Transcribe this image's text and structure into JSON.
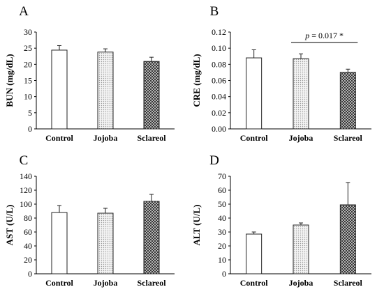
{
  "chart_data": [
    {
      "panel": "A",
      "type": "bar",
      "categories": [
        "Control",
        "Jojoba",
        "Sclareol"
      ],
      "values": [
        24.4,
        23.8,
        20.9
      ],
      "errors": [
        1.4,
        1.0,
        1.3
      ],
      "ylabel": "BUN (mg/dL)",
      "ylim": [
        0,
        30
      ],
      "yticks": [
        "0",
        "5",
        "10",
        "15",
        "20",
        "25",
        "30"
      ],
      "fills": [
        "white",
        "dots",
        "crosshatch"
      ]
    },
    {
      "panel": "B",
      "type": "bar",
      "categories": [
        "Control",
        "Jojoba",
        "Sclareol"
      ],
      "values": [
        0.088,
        0.087,
        0.07
      ],
      "errors": [
        0.01,
        0.006,
        0.004
      ],
      "ylabel": "CRE (mg/dL)",
      "ylim": [
        0,
        0.12
      ],
      "yticks": [
        "0.00",
        "0.02",
        "0.04",
        "0.06",
        "0.08",
        "0.10",
        "0.12"
      ],
      "fills": [
        "white",
        "dots",
        "crosshatch"
      ],
      "annotation": {
        "p_label": "p",
        "text": " = 0.017 *",
        "from": 1,
        "to": 2
      }
    },
    {
      "panel": "C",
      "type": "bar",
      "categories": [
        "Control",
        "Jojoba",
        "Sclareol"
      ],
      "values": [
        88,
        87,
        104
      ],
      "errors": [
        10,
        7,
        10
      ],
      "ylabel": "AST (U/L)",
      "ylim": [
        0,
        140
      ],
      "yticks": [
        "0",
        "20",
        "40",
        "60",
        "80",
        "100",
        "120",
        "140"
      ],
      "fills": [
        "white",
        "dots",
        "crosshatch"
      ]
    },
    {
      "panel": "D",
      "type": "bar",
      "categories": [
        "Control",
        "Jojoba",
        "Sclareol"
      ],
      "values": [
        28.5,
        35,
        49.5
      ],
      "errors": [
        1.5,
        1.5,
        16
      ],
      "ylabel": "ALT (U/L)",
      "ylim": [
        0,
        70
      ],
      "yticks": [
        "0",
        "10",
        "20",
        "30",
        "40",
        "50",
        "60",
        "70"
      ],
      "fills": [
        "white",
        "dots",
        "crosshatch"
      ]
    }
  ],
  "colors": {
    "axis": "#000000",
    "bar_stroke": "#222222",
    "dots": "#9a9a9a",
    "crosshatch": "#333333"
  }
}
